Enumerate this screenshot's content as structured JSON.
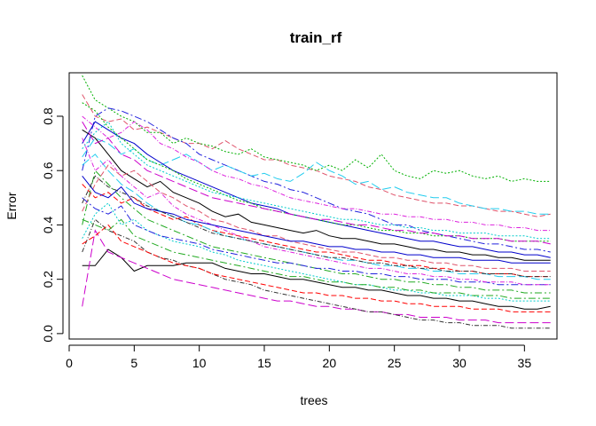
{
  "chart_data": {
    "type": "line",
    "title": "train_rf",
    "xlabel": "trees",
    "ylabel": "Error",
    "xlim": [
      0,
      37.5
    ],
    "ylim": [
      -0.02,
      0.96
    ],
    "x_ticks": [
      0,
      5,
      10,
      15,
      20,
      25,
      30,
      35
    ],
    "x_tick_labels": [
      "0",
      "5",
      "10",
      "15",
      "20",
      "25",
      "30",
      "35"
    ],
    "y_ticks": [
      0.0,
      0.2,
      0.4,
      0.6,
      0.8
    ],
    "y_tick_labels": [
      "0.0",
      "0.2",
      "0.4",
      "0.6",
      "0.8"
    ],
    "grid": false,
    "legend": "none",
    "colors": [
      "#000000",
      "#DF536B",
      "#00B000",
      "#2222DD",
      "#22CCEE",
      "#DD22DD",
      "#0000CC",
      "#FF0000",
      "#00CCCC",
      "#22AA22",
      "#CC00CC",
      "#333333"
    ],
    "series": [
      {
        "values": [
          0.25,
          0.25,
          0.31,
          0.28,
          0.23,
          0.25,
          0.25,
          0.25,
          0.26,
          0.26,
          0.26,
          0.24,
          0.23,
          0.22,
          0.22,
          0.21,
          0.2,
          0.2,
          0.19,
          0.18,
          0.17,
          0.17,
          0.16,
          0.16,
          0.15,
          0.14,
          0.14,
          0.13,
          0.13,
          0.12,
          0.12,
          0.11,
          0.1,
          0.1,
          0.09,
          0.09,
          0.1
        ]
      },
      {
        "values": [
          0.88,
          0.8,
          0.78,
          0.79,
          0.75,
          0.76,
          0.74,
          0.72,
          0.7,
          0.7,
          0.68,
          0.71,
          0.68,
          0.66,
          0.64,
          0.64,
          0.62,
          0.61,
          0.6,
          0.58,
          0.57,
          0.56,
          0.54,
          0.53,
          0.51,
          0.5,
          0.49,
          0.48,
          0.48,
          0.47,
          0.47,
          0.46,
          0.45,
          0.45,
          0.44,
          0.43,
          0.44
        ]
      },
      {
        "values": [
          0.95,
          0.86,
          0.83,
          0.8,
          0.78,
          0.74,
          0.74,
          0.7,
          0.72,
          0.7,
          0.69,
          0.67,
          0.66,
          0.68,
          0.65,
          0.64,
          0.63,
          0.62,
          0.6,
          0.62,
          0.6,
          0.64,
          0.61,
          0.66,
          0.6,
          0.58,
          0.57,
          0.6,
          0.59,
          0.6,
          0.58,
          0.57,
          0.58,
          0.56,
          0.57,
          0.56,
          0.56
        ]
      },
      {
        "values": [
          0.6,
          0.8,
          0.83,
          0.82,
          0.8,
          0.78,
          0.75,
          0.72,
          0.7,
          0.66,
          0.64,
          0.62,
          0.6,
          0.58,
          0.56,
          0.55,
          0.53,
          0.52,
          0.5,
          0.48,
          0.46,
          0.45,
          0.44,
          0.42,
          0.4,
          0.4,
          0.38,
          0.37,
          0.36,
          0.35,
          0.34,
          0.33,
          0.33,
          0.32,
          0.31,
          0.31,
          0.3
        ]
      },
      {
        "values": [
          0.65,
          0.72,
          0.7,
          0.66,
          0.68,
          0.64,
          0.62,
          0.64,
          0.66,
          0.63,
          0.6,
          0.62,
          0.6,
          0.58,
          0.59,
          0.57,
          0.56,
          0.59,
          0.63,
          0.6,
          0.58,
          0.55,
          0.56,
          0.53,
          0.54,
          0.52,
          0.51,
          0.5,
          0.5,
          0.48,
          0.47,
          0.46,
          0.46,
          0.45,
          0.45,
          0.44,
          0.44
        ]
      },
      {
        "values": [
          0.8,
          0.76,
          0.72,
          0.74,
          0.78,
          0.75,
          0.7,
          0.68,
          0.65,
          0.63,
          0.6,
          0.58,
          0.57,
          0.55,
          0.54,
          0.52,
          0.5,
          0.49,
          0.48,
          0.47,
          0.46,
          0.46,
          0.45,
          0.44,
          0.44,
          0.43,
          0.43,
          0.42,
          0.42,
          0.41,
          0.41,
          0.4,
          0.4,
          0.39,
          0.39,
          0.38,
          0.38
        ]
      },
      {
        "values": [
          0.7,
          0.78,
          0.75,
          0.72,
          0.7,
          0.66,
          0.63,
          0.6,
          0.58,
          0.56,
          0.54,
          0.52,
          0.5,
          0.48,
          0.47,
          0.46,
          0.44,
          0.43,
          0.42,
          0.41,
          0.4,
          0.39,
          0.38,
          0.37,
          0.36,
          0.35,
          0.34,
          0.34,
          0.33,
          0.32,
          0.32,
          0.31,
          0.3,
          0.3,
          0.29,
          0.29,
          0.28
        ]
      },
      {
        "values": [
          0.55,
          0.5,
          0.52,
          0.48,
          0.5,
          0.46,
          0.44,
          0.42,
          0.43,
          0.4,
          0.38,
          0.37,
          0.36,
          0.35,
          0.34,
          0.33,
          0.32,
          0.31,
          0.3,
          0.3,
          0.29,
          0.28,
          0.27,
          0.27,
          0.26,
          0.25,
          0.25,
          0.24,
          0.24,
          0.23,
          0.23,
          0.22,
          0.22,
          0.22,
          0.21,
          0.21,
          0.21
        ]
      },
      {
        "values": [
          0.35,
          0.44,
          0.48,
          0.4,
          0.42,
          0.38,
          0.36,
          0.34,
          0.33,
          0.32,
          0.3,
          0.29,
          0.27,
          0.26,
          0.25,
          0.24,
          0.23,
          0.22,
          0.21,
          0.2,
          0.19,
          0.18,
          0.18,
          0.17,
          0.16,
          0.16,
          0.15,
          0.15,
          0.14,
          0.14,
          0.14,
          0.13,
          0.13,
          0.12,
          0.12,
          0.12,
          0.12
        ]
      },
      {
        "values": [
          0.4,
          0.6,
          0.55,
          0.5,
          0.46,
          0.42,
          0.4,
          0.38,
          0.36,
          0.34,
          0.32,
          0.31,
          0.3,
          0.29,
          0.28,
          0.27,
          0.26,
          0.25,
          0.24,
          0.23,
          0.22,
          0.22,
          0.21,
          0.2,
          0.2,
          0.19,
          0.19,
          0.18,
          0.18,
          0.17,
          0.17,
          0.16,
          0.16,
          0.16,
          0.15,
          0.15,
          0.15
        ]
      },
      {
        "values": [
          0.1,
          0.38,
          0.3,
          0.28,
          0.26,
          0.24,
          0.22,
          0.2,
          0.19,
          0.18,
          0.17,
          0.16,
          0.15,
          0.14,
          0.13,
          0.12,
          0.12,
          0.11,
          0.1,
          0.1,
          0.09,
          0.09,
          0.08,
          0.08,
          0.07,
          0.07,
          0.06,
          0.06,
          0.06,
          0.05,
          0.05,
          0.05,
          0.04,
          0.04,
          0.04,
          0.04,
          0.04
        ]
      },
      {
        "values": [
          0.3,
          0.42,
          0.38,
          0.36,
          0.34,
          0.3,
          0.28,
          0.27,
          0.25,
          0.24,
          0.22,
          0.2,
          0.19,
          0.18,
          0.16,
          0.15,
          0.14,
          0.13,
          0.12,
          0.11,
          0.1,
          0.09,
          0.08,
          0.08,
          0.07,
          0.06,
          0.05,
          0.05,
          0.04,
          0.04,
          0.03,
          0.03,
          0.03,
          0.02,
          0.02,
          0.02,
          0.02
        ]
      },
      {
        "values": [
          0.75,
          0.72,
          0.66,
          0.6,
          0.57,
          0.54,
          0.56,
          0.52,
          0.5,
          0.48,
          0.45,
          0.43,
          0.44,
          0.41,
          0.4,
          0.39,
          0.38,
          0.37,
          0.38,
          0.36,
          0.35,
          0.35,
          0.34,
          0.33,
          0.33,
          0.32,
          0.31,
          0.31,
          0.3,
          0.3,
          0.29,
          0.29,
          0.28,
          0.28,
          0.27,
          0.27,
          0.27
        ]
      },
      {
        "values": [
          0.45,
          0.55,
          0.62,
          0.58,
          0.6,
          0.56,
          0.52,
          0.5,
          0.47,
          0.45,
          0.42,
          0.41,
          0.39,
          0.38,
          0.36,
          0.36,
          0.34,
          0.33,
          0.32,
          0.31,
          0.3,
          0.3,
          0.29,
          0.28,
          0.28,
          0.27,
          0.27,
          0.26,
          0.26,
          0.25,
          0.25,
          0.24,
          0.24,
          0.24,
          0.23,
          0.23,
          0.23
        ]
      },
      {
        "values": [
          0.85,
          0.82,
          0.76,
          0.72,
          0.68,
          0.64,
          0.62,
          0.6,
          0.57,
          0.55,
          0.53,
          0.51,
          0.49,
          0.48,
          0.46,
          0.45,
          0.44,
          0.43,
          0.42,
          0.41,
          0.4,
          0.4,
          0.39,
          0.38,
          0.38,
          0.37,
          0.37,
          0.36,
          0.36,
          0.36,
          0.35,
          0.35,
          0.35,
          0.34,
          0.34,
          0.34,
          0.34
        ]
      },
      {
        "values": [
          0.5,
          0.46,
          0.44,
          0.47,
          0.4,
          0.38,
          0.36,
          0.35,
          0.34,
          0.33,
          0.31,
          0.3,
          0.29,
          0.28,
          0.27,
          0.26,
          0.26,
          0.25,
          0.24,
          0.24,
          0.23,
          0.23,
          0.22,
          0.22,
          0.21,
          0.21,
          0.2,
          0.2,
          0.2,
          0.19,
          0.19,
          0.19,
          0.18,
          0.18,
          0.18,
          0.18,
          0.18
        ]
      },
      {
        "values": [
          0.62,
          0.66,
          0.6,
          0.55,
          0.52,
          0.48,
          0.45,
          0.43,
          0.41,
          0.4,
          0.38,
          0.36,
          0.35,
          0.34,
          0.33,
          0.32,
          0.31,
          0.3,
          0.29,
          0.28,
          0.27,
          0.27,
          0.26,
          0.25,
          0.25,
          0.24,
          0.24,
          0.23,
          0.23,
          0.22,
          0.22,
          0.22,
          0.21,
          0.21,
          0.21,
          0.2,
          0.2
        ]
      },
      {
        "values": [
          0.72,
          0.6,
          0.64,
          0.58,
          0.54,
          0.5,
          0.52,
          0.47,
          0.44,
          0.42,
          0.4,
          0.38,
          0.36,
          0.34,
          0.32,
          0.31,
          0.3,
          0.29,
          0.28,
          0.27,
          0.26,
          0.25,
          0.24,
          0.24,
          0.23,
          0.22,
          0.22,
          0.21,
          0.21,
          0.2,
          0.2,
          0.19,
          0.19,
          0.19,
          0.18,
          0.18,
          0.18
        ]
      },
      {
        "values": [
          0.58,
          0.52,
          0.5,
          0.54,
          0.48,
          0.46,
          0.45,
          0.44,
          0.42,
          0.41,
          0.4,
          0.39,
          0.38,
          0.37,
          0.36,
          0.35,
          0.34,
          0.34,
          0.33,
          0.32,
          0.32,
          0.31,
          0.31,
          0.3,
          0.3,
          0.29,
          0.29,
          0.28,
          0.28,
          0.28,
          0.27,
          0.27,
          0.27,
          0.26,
          0.26,
          0.26,
          0.26
        ]
      },
      {
        "values": [
          0.33,
          0.36,
          0.4,
          0.34,
          0.32,
          0.3,
          0.28,
          0.26,
          0.25,
          0.24,
          0.22,
          0.21,
          0.2,
          0.19,
          0.18,
          0.17,
          0.16,
          0.15,
          0.15,
          0.14,
          0.14,
          0.13,
          0.13,
          0.12,
          0.12,
          0.11,
          0.11,
          0.1,
          0.1,
          0.1,
          0.09,
          0.09,
          0.09,
          0.08,
          0.08,
          0.08,
          0.08
        ]
      },
      {
        "values": [
          0.68,
          0.74,
          0.78,
          0.7,
          0.66,
          0.62,
          0.6,
          0.58,
          0.56,
          0.54,
          0.52,
          0.51,
          0.5,
          0.49,
          0.48,
          0.47,
          0.46,
          0.45,
          0.44,
          0.43,
          0.42,
          0.42,
          0.41,
          0.4,
          0.4,
          0.39,
          0.39,
          0.38,
          0.38,
          0.37,
          0.37,
          0.37,
          0.36,
          0.36,
          0.36,
          0.35,
          0.35
        ]
      },
      {
        "values": [
          0.42,
          0.4,
          0.38,
          0.42,
          0.36,
          0.34,
          0.32,
          0.3,
          0.29,
          0.28,
          0.27,
          0.26,
          0.25,
          0.24,
          0.23,
          0.22,
          0.21,
          0.21,
          0.2,
          0.19,
          0.19,
          0.18,
          0.18,
          0.17,
          0.17,
          0.16,
          0.16,
          0.15,
          0.15,
          0.15,
          0.14,
          0.14,
          0.14,
          0.13,
          0.13,
          0.13,
          0.13
        ]
      },
      {
        "values": [
          0.78,
          0.7,
          0.72,
          0.66,
          0.64,
          0.6,
          0.58,
          0.56,
          0.54,
          0.52,
          0.5,
          0.49,
          0.48,
          0.47,
          0.46,
          0.45,
          0.44,
          0.43,
          0.42,
          0.42,
          0.41,
          0.4,
          0.4,
          0.39,
          0.38,
          0.38,
          0.37,
          0.37,
          0.36,
          0.36,
          0.35,
          0.35,
          0.35,
          0.34,
          0.34,
          0.34,
          0.33
        ]
      },
      {
        "values": [
          0.48,
          0.58,
          0.54,
          0.52,
          0.5,
          0.47,
          0.45,
          0.43,
          0.41,
          0.39,
          0.37,
          0.36,
          0.35,
          0.34,
          0.33,
          0.32,
          0.31,
          0.3,
          0.29,
          0.28,
          0.28,
          0.27,
          0.26,
          0.26,
          0.25,
          0.25,
          0.24,
          0.24,
          0.23,
          0.23,
          0.23,
          0.22,
          0.22,
          0.22,
          0.21,
          0.21,
          0.21
        ]
      }
    ]
  }
}
